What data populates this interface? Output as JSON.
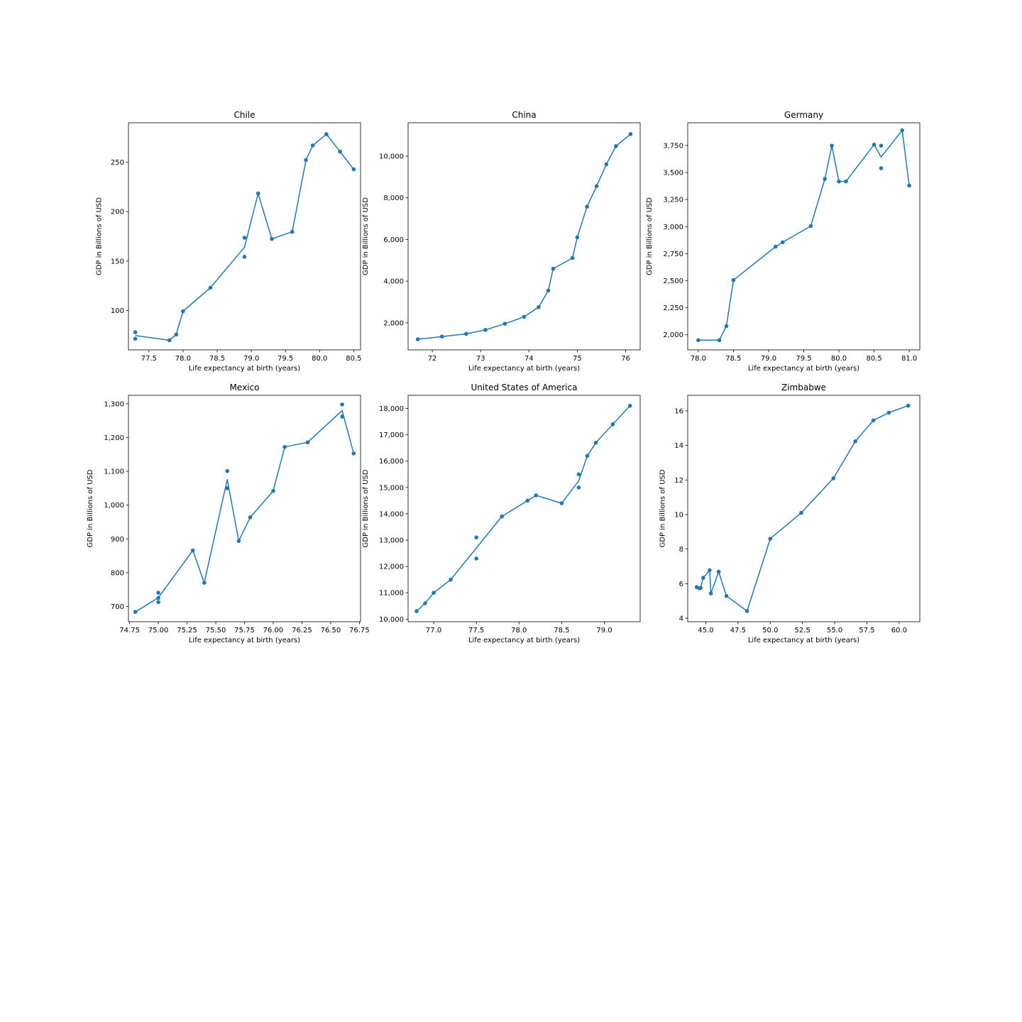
{
  "figure": {
    "line_color": "#1f77b4",
    "background": "#ffffff"
  },
  "chart_data": [
    {
      "type": "line",
      "title": "Chile",
      "xlabel": "Life expectancy at birth (years)",
      "ylabel": "GDP in Billions of USD",
      "xlim": [
        77.2,
        80.6
      ],
      "ylim": [
        60,
        290
      ],
      "xticks": [
        77.5,
        78.0,
        78.5,
        79.0,
        79.5,
        80.0,
        80.5
      ],
      "xtick_decimals": 1,
      "yticks": [
        100,
        150,
        200,
        250
      ],
      "ytick_decimals": 0,
      "grid": false,
      "points": [
        [
          77.3,
          77.9
        ],
        [
          77.3,
          71.3
        ],
        [
          77.8,
          69.7
        ],
        [
          77.9,
          75.6
        ],
        [
          78.0,
          99.2
        ],
        [
          78.4,
          122.9
        ],
        [
          78.9,
          173.6
        ],
        [
          78.9,
          154.3
        ],
        [
          79.1,
          218.5
        ],
        [
          79.3,
          172.4
        ],
        [
          79.6,
          179.6
        ],
        [
          79.8,
          252.3
        ],
        [
          79.9,
          267.1
        ],
        [
          80.1,
          278.4
        ],
        [
          80.3,
          260.8
        ],
        [
          80.5,
          242.9
        ]
      ],
      "line": [
        [
          77.3,
          74.6
        ],
        [
          77.8,
          69.7
        ],
        [
          77.9,
          75.6
        ],
        [
          78.0,
          99.2
        ],
        [
          78.4,
          122.9
        ],
        [
          78.9,
          164.0
        ],
        [
          79.1,
          218.5
        ],
        [
          79.3,
          172.4
        ],
        [
          79.6,
          179.6
        ],
        [
          79.8,
          252.3
        ],
        [
          79.9,
          267.1
        ],
        [
          80.1,
          278.4
        ],
        [
          80.3,
          260.8
        ],
        [
          80.5,
          242.9
        ]
      ]
    },
    {
      "type": "line",
      "title": "China",
      "xlabel": "Life expectancy at birth (years)",
      "ylabel": "GDP in Billions of USD",
      "xlim": [
        71.5,
        76.3
      ],
      "ylim": [
        700,
        11600
      ],
      "xticks": [
        72,
        73,
        74,
        75,
        76
      ],
      "xtick_decimals": 0,
      "yticks": [
        2000,
        4000,
        6000,
        8000,
        10000
      ],
      "ytick_decimals": 0,
      "grid": false,
      "points": [
        [
          71.7,
          1211
        ],
        [
          72.2,
          1339
        ],
        [
          72.7,
          1470
        ],
        [
          73.1,
          1660
        ],
        [
          73.5,
          1955
        ],
        [
          73.9,
          2286
        ],
        [
          74.2,
          2752
        ],
        [
          74.4,
          3552
        ],
        [
          74.5,
          4598
        ],
        [
          74.9,
          5110
        ],
        [
          75.0,
          6101
        ],
        [
          75.2,
          7573
        ],
        [
          75.4,
          8561
        ],
        [
          75.6,
          9607
        ],
        [
          75.8,
          10480
        ],
        [
          76.1,
          11060
        ]
      ],
      "line": [
        [
          71.7,
          1211
        ],
        [
          72.2,
          1339
        ],
        [
          72.7,
          1470
        ],
        [
          73.1,
          1660
        ],
        [
          73.5,
          1955
        ],
        [
          73.9,
          2286
        ],
        [
          74.2,
          2752
        ],
        [
          74.4,
          3552
        ],
        [
          74.5,
          4598
        ],
        [
          74.9,
          5110
        ],
        [
          75.0,
          6101
        ],
        [
          75.2,
          7573
        ],
        [
          75.4,
          8561
        ],
        [
          75.6,
          9607
        ],
        [
          75.8,
          10480
        ],
        [
          76.1,
          11060
        ]
      ]
    },
    {
      "type": "line",
      "title": "Germany",
      "xlabel": "Life expectancy at birth (years)",
      "ylabel": "GDP in Billions of USD",
      "xlim": [
        77.85,
        81.15
      ],
      "ylim": [
        1860,
        3960
      ],
      "xticks": [
        78.0,
        78.5,
        79.0,
        79.5,
        80.0,
        80.5,
        81.0
      ],
      "xtick_decimals": 1,
      "yticks": [
        2000,
        2250,
        2500,
        2750,
        3000,
        3250,
        3500,
        3750
      ],
      "ytick_decimals": 0,
      "grid": false,
      "points": [
        [
          78.0,
          1950
        ],
        [
          78.3,
          1950
        ],
        [
          78.4,
          2080
        ],
        [
          78.5,
          2505
        ],
        [
          79.1,
          2815
        ],
        [
          79.2,
          2855
        ],
        [
          79.6,
          3005
        ],
        [
          79.8,
          3440
        ],
        [
          79.9,
          3748
        ],
        [
          80.0,
          3418
        ],
        [
          80.1,
          3418
        ],
        [
          80.5,
          3758
        ],
        [
          80.6,
          3748
        ],
        [
          80.6,
          3540
        ],
        [
          80.9,
          3890
        ],
        [
          81.0,
          3380
        ]
      ],
      "line": [
        [
          78.0,
          1950
        ],
        [
          78.3,
          1950
        ],
        [
          78.4,
          2080
        ],
        [
          78.5,
          2505
        ],
        [
          79.1,
          2815
        ],
        [
          79.2,
          2855
        ],
        [
          79.6,
          3005
        ],
        [
          79.8,
          3440
        ],
        [
          79.9,
          3748
        ],
        [
          80.0,
          3418
        ],
        [
          80.1,
          3418
        ],
        [
          80.5,
          3758
        ],
        [
          80.6,
          3644
        ],
        [
          80.9,
          3890
        ],
        [
          81.0,
          3380
        ]
      ]
    },
    {
      "type": "line",
      "title": "Mexico",
      "xlabel": "Life expectancy at birth (years)",
      "ylabel": "GDP in Billions of USD",
      "xlim": [
        74.74,
        76.76
      ],
      "ylim": [
        655,
        1325
      ],
      "xticks": [
        74.75,
        75.0,
        75.25,
        75.5,
        75.75,
        76.0,
        76.25,
        76.5,
        76.75
      ],
      "xtick_decimals": 2,
      "yticks": [
        700,
        800,
        900,
        1000,
        1100,
        1200,
        1300
      ],
      "ytick_decimals": 0,
      "grid": false,
      "points": [
        [
          74.8,
          684
        ],
        [
          75.0,
          741
        ],
        [
          75.0,
          725
        ],
        [
          75.0,
          713
        ],
        [
          75.3,
          866
        ],
        [
          75.4,
          770
        ],
        [
          75.6,
          1101
        ],
        [
          75.6,
          1050
        ],
        [
          75.7,
          894
        ],
        [
          75.8,
          964
        ],
        [
          76.0,
          1042
        ],
        [
          76.1,
          1172
        ],
        [
          76.3,
          1186
        ],
        [
          76.6,
          1298
        ],
        [
          76.6,
          1262
        ],
        [
          76.7,
          1153
        ]
      ],
      "line": [
        [
          74.8,
          684
        ],
        [
          75.0,
          726
        ],
        [
          75.3,
          866
        ],
        [
          75.4,
          770
        ],
        [
          75.6,
          1076
        ],
        [
          75.7,
          894
        ],
        [
          75.8,
          964
        ],
        [
          76.0,
          1042
        ],
        [
          76.1,
          1172
        ],
        [
          76.3,
          1186
        ],
        [
          76.6,
          1280
        ],
        [
          76.7,
          1153
        ]
      ]
    },
    {
      "type": "line",
      "title": "United States of America",
      "xlabel": "Life expectancy at birth (years)",
      "ylabel": "GDP in Billions of USD",
      "xlim": [
        76.7,
        79.42
      ],
      "ylim": [
        9900,
        18500
      ],
      "xticks": [
        77.0,
        77.5,
        78.0,
        78.5,
        79.0
      ],
      "xtick_decimals": 1,
      "yticks": [
        10000,
        11000,
        12000,
        13000,
        14000,
        15000,
        16000,
        17000,
        18000
      ],
      "ytick_decimals": 0,
      "grid": false,
      "points": [
        [
          76.8,
          10300
        ],
        [
          76.9,
          10600
        ],
        [
          77.0,
          11000
        ],
        [
          77.2,
          11500
        ],
        [
          77.5,
          13100
        ],
        [
          77.5,
          12300
        ],
        [
          77.8,
          13900
        ],
        [
          78.1,
          14500
        ],
        [
          78.2,
          14700
        ],
        [
          78.5,
          14400
        ],
        [
          78.7,
          15500
        ],
        [
          78.7,
          15000
        ],
        [
          78.8,
          16200
        ],
        [
          78.9,
          16700
        ],
        [
          79.1,
          17400
        ],
        [
          79.3,
          18100
        ]
      ],
      "line": [
        [
          76.8,
          10300
        ],
        [
          76.9,
          10600
        ],
        [
          77.0,
          11000
        ],
        [
          77.2,
          11500
        ],
        [
          77.5,
          12700
        ],
        [
          77.8,
          13900
        ],
        [
          78.1,
          14500
        ],
        [
          78.2,
          14700
        ],
        [
          78.5,
          14400
        ],
        [
          78.7,
          15250
        ],
        [
          78.8,
          16200
        ],
        [
          78.9,
          16700
        ],
        [
          79.1,
          17400
        ],
        [
          79.3,
          18100
        ]
      ]
    },
    {
      "type": "line",
      "title": "Zimbabwe",
      "xlabel": "Life expectancy at birth (years)",
      "ylabel": "GDP in Billions of USD",
      "xlim": [
        43.6,
        61.6
      ],
      "ylim": [
        3.8,
        16.9
      ],
      "xticks": [
        45.0,
        47.5,
        50.0,
        52.5,
        55.0,
        57.5,
        60.0
      ],
      "xtick_decimals": 1,
      "yticks": [
        4,
        6,
        8,
        10,
        12,
        14,
        16
      ],
      "ytick_decimals": 0,
      "grid": false,
      "points": [
        [
          44.3,
          5.8
        ],
        [
          44.5,
          5.73
        ],
        [
          44.6,
          5.76
        ],
        [
          44.8,
          6.34
        ],
        [
          45.3,
          6.78
        ],
        [
          45.4,
          5.44
        ],
        [
          46.0,
          6.69
        ],
        [
          46.6,
          5.29
        ],
        [
          48.2,
          4.42
        ],
        [
          50.0,
          8.6
        ],
        [
          52.4,
          10.1
        ],
        [
          54.9,
          12.1
        ],
        [
          56.6,
          14.24
        ],
        [
          58.0,
          15.45
        ],
        [
          59.2,
          15.9
        ],
        [
          60.7,
          16.3
        ]
      ],
      "line": [
        [
          44.3,
          5.8
        ],
        [
          44.5,
          5.73
        ],
        [
          44.6,
          5.76
        ],
        [
          44.8,
          6.34
        ],
        [
          45.3,
          6.78
        ],
        [
          45.4,
          5.44
        ],
        [
          46.0,
          6.69
        ],
        [
          46.6,
          5.29
        ],
        [
          48.2,
          4.42
        ],
        [
          50.0,
          8.6
        ],
        [
          52.4,
          10.1
        ],
        [
          54.9,
          12.1
        ],
        [
          56.6,
          14.24
        ],
        [
          58.0,
          15.45
        ],
        [
          59.2,
          15.9
        ],
        [
          60.7,
          16.3
        ]
      ]
    }
  ]
}
